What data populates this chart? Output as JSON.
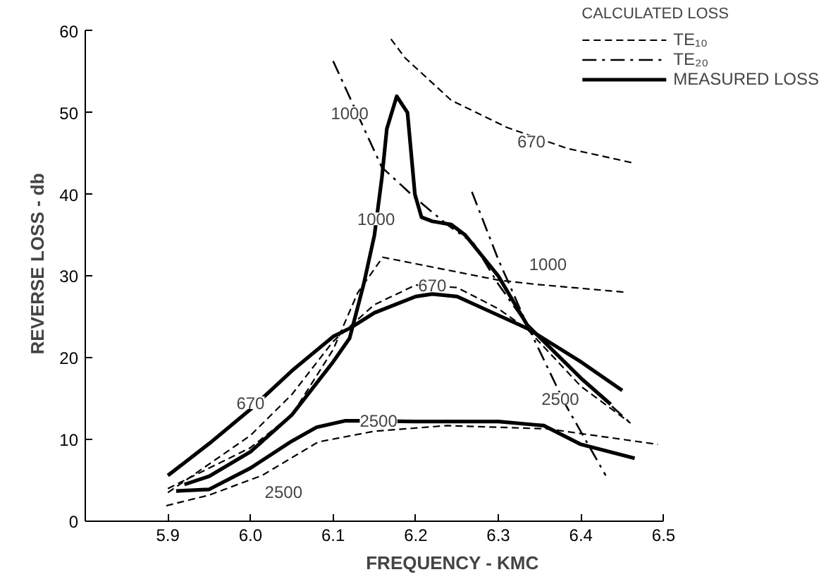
{
  "chart_data": {
    "type": "line",
    "xlabel": "FREQUENCY - KMC",
    "ylabel": "REVERSE LOSS - db",
    "xlim": [
      5.8,
      6.5
    ],
    "xticks": [
      5.9,
      {
        "value": 6.0,
        "label": "6.0"
      },
      6.1,
      6.2,
      6.3,
      6.4,
      6.5
    ],
    "ylim": [
      0,
      60
    ],
    "yticks": [
      0,
      10,
      20,
      30,
      40,
      50,
      60
    ],
    "grid": false,
    "legend": "top right",
    "legend_title": "CALCULATED LOSS",
    "marker": "none",
    "series": [
      {
        "name": "MEASURED LOSS",
        "color": "#000000",
        "line_style": "solid",
        "x": [
          5.9,
          5.95,
          6.0,
          6.05,
          6.1,
          6.12,
          6.15,
          6.2,
          6.22,
          6.25,
          6.3,
          6.335,
          6.4,
          6.45
        ],
        "values": [
          5.6,
          9.5,
          13.7,
          18.4,
          22.6,
          23.6,
          25.5,
          27.5,
          27.8,
          27.5,
          25.2,
          23.6,
          19.5,
          16
        ]
      },
      {
        "color": "#000000",
        "line_style": "solid",
        "x": [
          5.92,
          5.95,
          6.0,
          6.05,
          6.1,
          6.12,
          6.137,
          6.15,
          6.159,
          6.165,
          6.177,
          6.19,
          6.199,
          6.207,
          6.22,
          6.243,
          6.26,
          6.3,
          6.335,
          6.4,
          6.436
        ],
        "values": [
          4.5,
          5.5,
          8.5,
          13,
          19.5,
          22.4,
          29,
          35,
          42,
          48,
          52,
          50,
          40,
          37.2,
          36.7,
          36.3,
          35,
          30,
          24,
          17.5,
          14.3
        ]
      },
      {
        "color": "#000000",
        "line_style": "solid",
        "x": [
          5.91,
          5.95,
          6.0,
          6.05,
          6.08,
          6.115,
          6.2,
          6.3,
          6.355,
          6.4,
          6.465
        ],
        "values": [
          3.7,
          3.9,
          6.5,
          9.8,
          11.5,
          12.3,
          12.2,
          12.2,
          11.7,
          9.4,
          7.7
        ]
      },
      {
        "name": "TE₁₀",
        "color": "#000000",
        "line_style": "dashed",
        "x": [
          6.17,
          6.187,
          6.243,
          6.31,
          6.384,
          6.465
        ],
        "values": [
          59,
          56.7,
          51.5,
          48.2,
          45.6,
          43.8
        ]
      },
      {
        "color": "#000000",
        "line_style": "dashed",
        "x": [
          5.9,
          6.0,
          6.05,
          6.1,
          6.13,
          6.16,
          6.2,
          6.3,
          6.344,
          6.456
        ],
        "values": [
          4,
          9,
          13,
          21,
          28,
          32.3,
          31.5,
          29.5,
          29,
          28
        ]
      },
      {
        "color": "#000000",
        "line_style": "dashed",
        "x": [
          5.9,
          6.0,
          6.05,
          6.1,
          6.15,
          6.2,
          6.25,
          6.3,
          6.335,
          6.4,
          6.46
        ],
        "values": [
          3.5,
          10.5,
          15.5,
          22,
          26.5,
          28.9,
          28.6,
          26,
          23.5,
          16.5,
          12
        ]
      },
      {
        "color": "#000000",
        "line_style": "dashed",
        "x": [
          5.898,
          5.95,
          6.014,
          6.082,
          6.149,
          6.238,
          6.36,
          6.493
        ],
        "values": [
          1.9,
          3.2,
          5.6,
          9.7,
          11,
          11.7,
          11.3,
          9.4
        ]
      },
      {
        "name": "TE₂₀",
        "color": "#000000",
        "line_style": "dashdot",
        "x": [
          6.1,
          6.159,
          6.2,
          6.238,
          6.27,
          6.3,
          6.335,
          6.4,
          6.46
        ],
        "values": [
          56.3,
          43.3,
          39.5,
          36.3,
          34,
          29,
          24,
          17.5,
          12
        ]
      },
      {
        "color": "#000000",
        "line_style": "dashdot",
        "x": [
          6.268,
          6.3,
          6.335,
          6.38,
          6.43
        ],
        "values": [
          40.3,
          32,
          24,
          14.5,
          5.6
        ]
      }
    ],
    "annotations": [
      {
        "text": "670",
        "x": 6.34,
        "y": 46.5
      },
      {
        "text": "1000",
        "x": 6.12,
        "y": 50
      },
      {
        "text": "1000",
        "x": 6.152,
        "y": 37
      },
      {
        "text": "670",
        "x": 6.22,
        "y": 28.9
      },
      {
        "text": "1000",
        "x": 6.36,
        "y": 31.5
      },
      {
        "text": "670",
        "x": 6.0,
        "y": 14.5
      },
      {
        "text": "2500",
        "x": 6.155,
        "y": 12.3
      },
      {
        "text": "2500",
        "x": 6.04,
        "y": 3.6
      },
      {
        "text": "2500",
        "x": 6.375,
        "y": 15
      }
    ]
  }
}
